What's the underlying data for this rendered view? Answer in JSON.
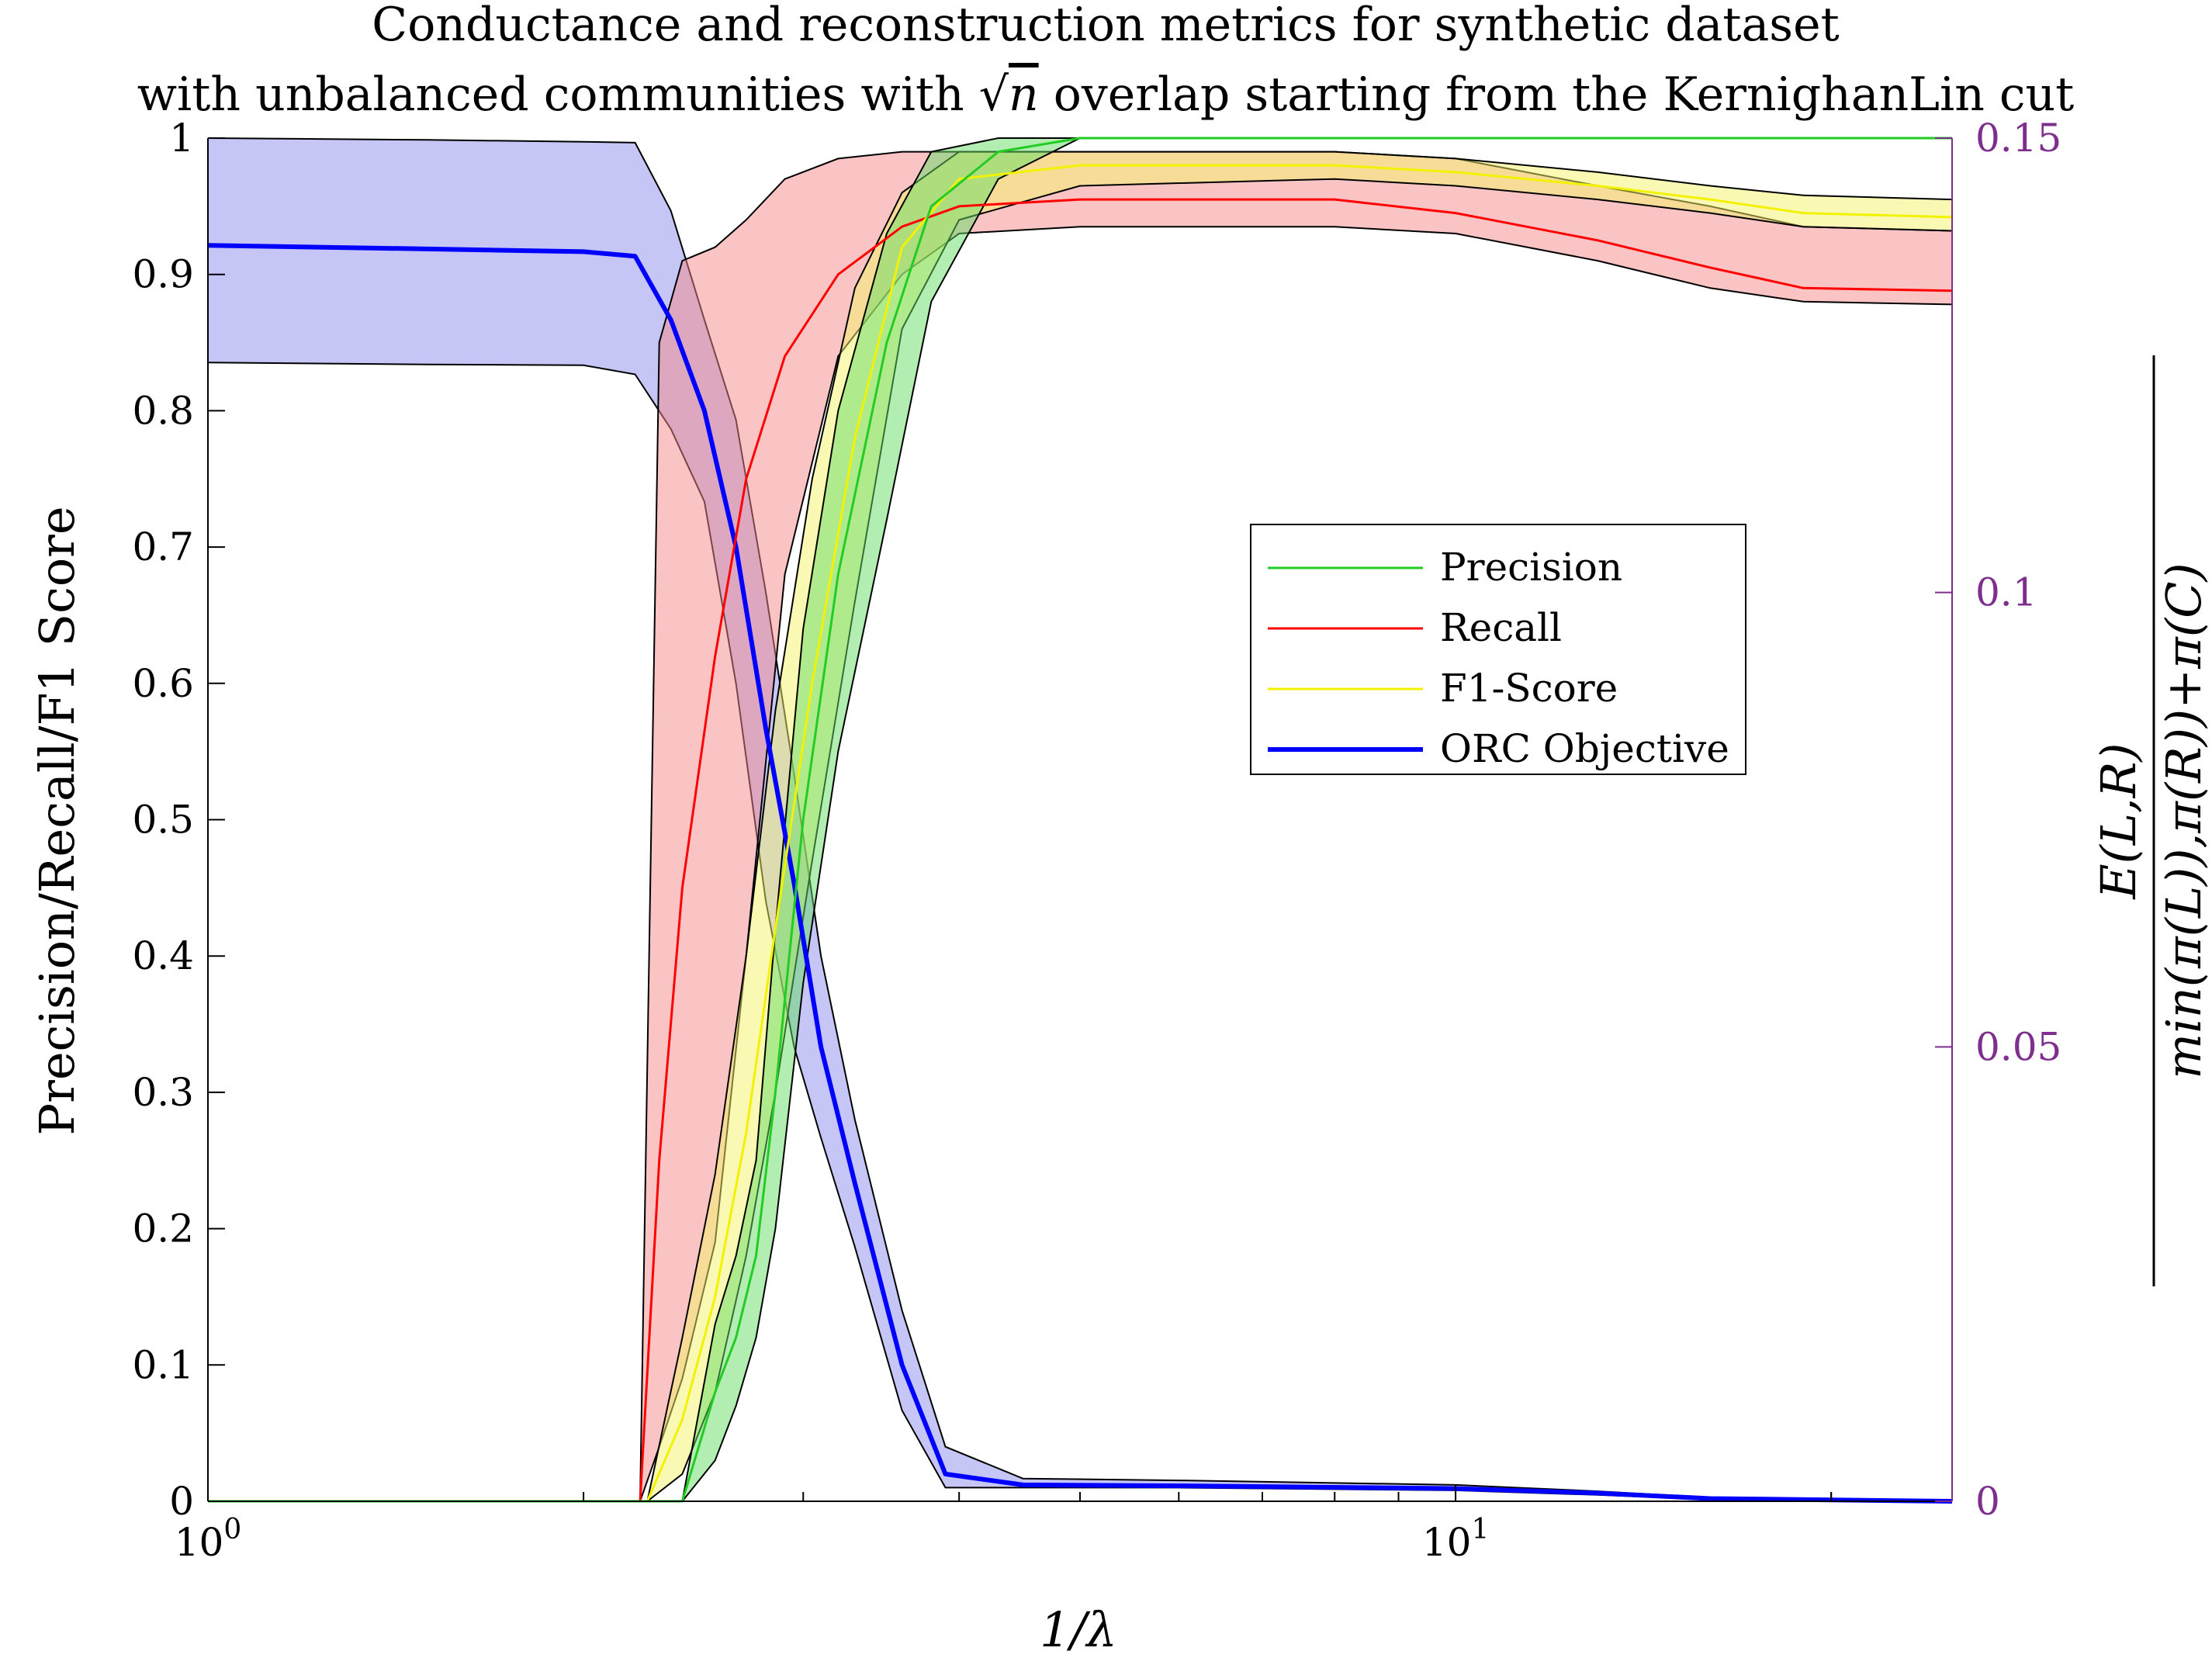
{
  "chart_data": {
    "type": "line",
    "title": "Conductance and reconstruction metrics for synthetic dataset",
    "subtitle_parts": [
      "with unbalanced communities with ",
      "√",
      "n",
      " overlap starting from the KernighanLin cut"
    ],
    "xlabel": "1/λ",
    "ylabel": "Precision/Recall/F1 Score",
    "ylabel_right_numerator": "E(L,R)",
    "ylabel_right_denominator": "min(π(L)),π(R))+π(C)",
    "x_scale": "log",
    "xlim": [
      1,
      25
    ],
    "ylim": [
      0,
      1
    ],
    "ylim_right": [
      0,
      0.15
    ],
    "x_ticks": [
      {
        "base": "10",
        "exp": "0",
        "value": 1
      },
      {
        "base": "10",
        "exp": "1",
        "value": 10
      }
    ],
    "y_ticks": [
      "0",
      "0.1",
      "0.2",
      "0.3",
      "0.4",
      "0.5",
      "0.6",
      "0.7",
      "0.8",
      "0.9",
      "1"
    ],
    "y_ticks_right": [
      "0",
      "0.05",
      "0.1",
      "0.15"
    ],
    "grid": false,
    "legend_position": "center-right",
    "colors": {
      "precision": "#22CC22",
      "precision_fill": "#66DD66",
      "recall": "#FF0000",
      "recall_fill": "#F58A8A",
      "f1": "#F2F200",
      "f1_fill": "#F4F46A",
      "orc": "#0000FF",
      "orc_fill": "#8C8CEE",
      "right_axis": "#7E2F8E"
    },
    "series": [
      {
        "name": "Precision",
        "x": [
          1.0,
          2.0,
          2.4,
          2.55,
          2.65,
          2.75,
          2.85,
          3.0,
          3.2,
          3.5,
          3.8,
          4.3,
          5,
          10,
          25
        ],
        "values": [
          0,
          0,
          0.0,
          0.08,
          0.12,
          0.18,
          0.3,
          0.5,
          0.68,
          0.85,
          0.95,
          0.99,
          1.0,
          1.0,
          1.0
        ],
        "lower": [
          0,
          0,
          0.0,
          0.03,
          0.07,
          0.12,
          0.2,
          0.38,
          0.55,
          0.72,
          0.88,
          0.97,
          1.0,
          1.0,
          1.0
        ],
        "upper": [
          0,
          0,
          0.0,
          0.13,
          0.18,
          0.25,
          0.42,
          0.64,
          0.8,
          0.93,
          0.99,
          1.0,
          1.0,
          1.0,
          1.0
        ]
      },
      {
        "name": "Recall",
        "x": [
          1.0,
          2.0,
          2.22,
          2.3,
          2.4,
          2.55,
          2.7,
          2.9,
          3.2,
          3.6,
          4.0,
          5,
          8,
          10,
          13,
          16,
          19,
          25
        ],
        "values": [
          0,
          0,
          0.0,
          0.25,
          0.45,
          0.62,
          0.75,
          0.84,
          0.9,
          0.935,
          0.95,
          0.955,
          0.955,
          0.945,
          0.925,
          0.905,
          0.89,
          0.888
        ],
        "lower": [
          0,
          0,
          0.0,
          0.04,
          0.09,
          0.19,
          0.4,
          0.68,
          0.84,
          0.9,
          0.93,
          0.935,
          0.935,
          0.93,
          0.91,
          0.89,
          0.88,
          0.878
        ],
        "upper": [
          0,
          0,
          0.0,
          0.85,
          0.91,
          0.92,
          0.94,
          0.97,
          0.985,
          0.99,
          0.99,
          0.99,
          0.99,
          0.985,
          0.965,
          0.95,
          0.935,
          0.932
        ]
      },
      {
        "name": "F1-Score",
        "x": [
          1.0,
          2.0,
          2.25,
          2.4,
          2.55,
          2.7,
          2.85,
          3.05,
          3.3,
          3.6,
          4.0,
          5,
          8,
          10,
          13,
          16,
          19,
          25
        ],
        "values": [
          0,
          0,
          0.0,
          0.06,
          0.15,
          0.27,
          0.42,
          0.6,
          0.78,
          0.92,
          0.97,
          0.98,
          0.98,
          0.975,
          0.965,
          0.955,
          0.945,
          0.942
        ],
        "lower": [
          0,
          0,
          0.0,
          0.02,
          0.08,
          0.18,
          0.3,
          0.47,
          0.66,
          0.86,
          0.94,
          0.965,
          0.97,
          0.965,
          0.955,
          0.945,
          0.935,
          0.932
        ],
        "upper": [
          0,
          0,
          0.0,
          0.12,
          0.24,
          0.4,
          0.58,
          0.75,
          0.89,
          0.96,
          0.99,
          0.99,
          0.99,
          0.985,
          0.975,
          0.965,
          0.958,
          0.955
        ]
      },
      {
        "name": "ORC Objective",
        "axis": "right",
        "x": [
          1.0,
          1.5,
          2.0,
          2.2,
          2.35,
          2.5,
          2.65,
          2.8,
          2.95,
          3.1,
          3.3,
          3.6,
          3.9,
          4.5,
          6,
          10,
          13,
          16,
          25
        ],
        "values": [
          0.1382,
          0.1378,
          0.1375,
          0.137,
          0.13,
          0.12,
          0.105,
          0.085,
          0.068,
          0.05,
          0.035,
          0.015,
          0.003,
          0.0018,
          0.0017,
          0.0014,
          0.0009,
          0.0003,
          0.0
        ],
        "lower": [
          0.1253,
          0.1251,
          0.125,
          0.124,
          0.118,
          0.11,
          0.09,
          0.066,
          0.05,
          0.04,
          0.028,
          0.01,
          0.0015,
          0.0015,
          0.0015,
          0.0012,
          0.0007,
          0.0002,
          0.0
        ],
        "upper": [
          0.15,
          0.1498,
          0.1496,
          0.1495,
          0.142,
          0.13,
          0.119,
          0.1,
          0.08,
          0.06,
          0.042,
          0.021,
          0.006,
          0.0025,
          0.0023,
          0.0018,
          0.0011,
          0.0004,
          0.0
        ]
      }
    ]
  }
}
